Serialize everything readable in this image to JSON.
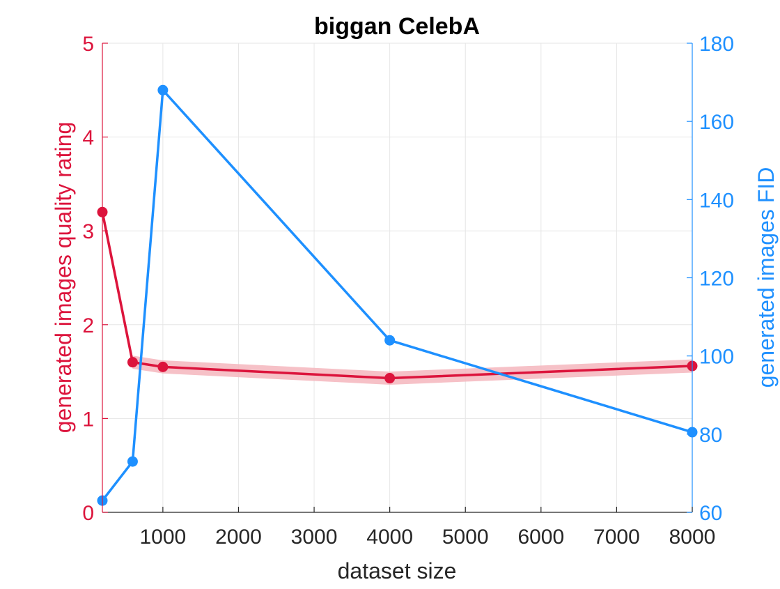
{
  "chart_data": {
    "type": "line",
    "title": "biggan CelebA",
    "xlabel": "dataset size",
    "ylabel_left": "generated images quality rating",
    "ylabel_right": "generated images FID",
    "xlim": [
      200,
      8000
    ],
    "ylim_left": [
      0,
      5
    ],
    "ylim_right": [
      60,
      180
    ],
    "xticks": [
      1000,
      2000,
      3000,
      4000,
      5000,
      6000,
      7000,
      8000
    ],
    "yticks_left": [
      0,
      1,
      2,
      3,
      4,
      5
    ],
    "yticks_right": [
      60,
      80,
      100,
      120,
      140,
      160,
      180
    ],
    "grid": true,
    "colors": {
      "left": "#dc143c",
      "right": "#1e90ff",
      "band": "#f4b6bd",
      "axis": "#262626",
      "grid": "#e6e6e6"
    },
    "series": [
      {
        "axis": "left",
        "x": [
          200,
          600,
          1000,
          4000,
          8000
        ],
        "y": [
          3.2,
          1.6,
          1.55,
          1.43,
          1.56
        ],
        "band": [
          0.07,
          0.07,
          0.07,
          0.07,
          0.07
        ]
      },
      {
        "axis": "right",
        "x": [
          200,
          600,
          1000,
          4000,
          8000
        ],
        "y": [
          63,
          73,
          168,
          104,
          80.5
        ]
      }
    ]
  }
}
